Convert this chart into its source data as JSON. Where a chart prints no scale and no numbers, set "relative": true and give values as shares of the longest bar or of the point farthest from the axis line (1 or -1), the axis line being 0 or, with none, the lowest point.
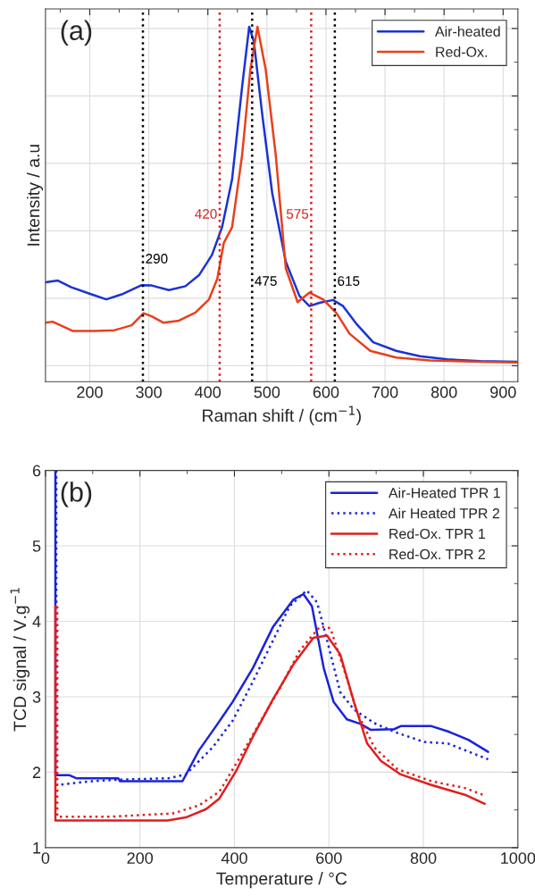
{
  "chart_data": [
    {
      "type": "line",
      "relative": true,
      "xlabel": "Raman shift / (cm$^{−1}$)",
      "ylabel": "Intensity / a.u",
      "xlim": [
        125,
        925
      ],
      "xticks": [
        200,
        300,
        400,
        500,
        600,
        700,
        800,
        900
      ],
      "tick_labels": "x",
      "grid": true,
      "legend": "top right",
      "line_style": "solid",
      "marker": "none",
      "annotations": [
        "(a)"
      ],
      "ref_lines": [
        {
          "axis": "x",
          "value": 290,
          "label": "290",
          "color": "#000000",
          "line_style": "dotted"
        },
        {
          "axis": "x",
          "value": 420,
          "label": "420",
          "color": "#d42020",
          "line_style": "dotted"
        },
        {
          "axis": "x",
          "value": 475,
          "label": "475",
          "color": "#000000",
          "line_style": "dotted"
        },
        {
          "axis": "x",
          "value": 575,
          "label": "575",
          "color": "#d42020",
          "line_style": "dotted"
        },
        {
          "axis": "x",
          "value": 615,
          "label": "615",
          "color": "#000000",
          "line_style": "dotted"
        }
      ],
      "series": [
        {
          "name": "Air-heated",
          "color": "#1a33d4",
          "x": [
            125,
            146,
            169,
            203,
            228,
            254,
            288,
            305,
            334,
            362,
            385,
            407,
            424,
            441,
            458,
            470,
            478,
            492,
            509,
            532,
            555,
            572,
            589,
            612,
            629,
            651,
            680,
            719,
            759,
            805,
            862,
            923
          ],
          "values": [
            0.28,
            0.285,
            0.266,
            0.246,
            0.232,
            0.246,
            0.272,
            0.271,
            0.258,
            0.269,
            0.3,
            0.357,
            0.435,
            0.57,
            0.831,
            1.0,
            0.957,
            0.754,
            0.531,
            0.338,
            0.242,
            0.213,
            0.222,
            0.23,
            0.213,
            0.164,
            0.111,
            0.087,
            0.072,
            0.063,
            0.058,
            0.056
          ]
        },
        {
          "name": "Red-Ox.",
          "color": "#e8401c",
          "x": [
            125,
            137,
            171,
            208,
            242,
            271,
            291,
            305,
            325,
            351,
            379,
            402,
            416,
            427,
            441,
            458,
            472,
            484,
            498,
            515,
            532,
            552,
            572,
            595,
            618,
            640,
            675,
            719,
            776,
            862,
            923
          ],
          "values": [
            0.166,
            0.169,
            0.143,
            0.143,
            0.145,
            0.159,
            0.193,
            0.184,
            0.166,
            0.172,
            0.195,
            0.232,
            0.29,
            0.391,
            0.435,
            0.638,
            0.879,
            1.0,
            0.879,
            0.638,
            0.319,
            0.224,
            0.251,
            0.232,
            0.193,
            0.135,
            0.087,
            0.068,
            0.06,
            0.056,
            0.054
          ]
        }
      ]
    },
    {
      "type": "line",
      "xlabel": "Temperature / °C",
      "ylabel": "TCD signal / V.g$^{−1}$",
      "xlim": [
        0,
        1000
      ],
      "xticks": [
        0,
        200,
        400,
        600,
        800,
        1000
      ],
      "ylim": [
        1,
        6
      ],
      "yticks": [
        1,
        2,
        3,
        4,
        5,
        6
      ],
      "grid": true,
      "legend": "top right",
      "marker": "none",
      "annotations": [
        "(b)"
      ],
      "series": [
        {
          "name": "Air-Heated TPR 1",
          "color": "#1a24d8",
          "line_style": "solid",
          "x": [
            21,
            21,
            51,
            65,
            154,
            158,
            290,
            325,
            361,
            396,
            439,
            482,
            525,
            546,
            564,
            589,
            610,
            638,
            667,
            689,
            738,
            752,
            817,
            852,
            895,
            937
          ],
          "values": [
            6.0,
            1.96,
            1.96,
            1.92,
            1.92,
            1.88,
            1.88,
            2.29,
            2.61,
            2.93,
            3.38,
            3.93,
            4.29,
            4.36,
            4.2,
            3.38,
            2.93,
            2.7,
            2.64,
            2.56,
            2.57,
            2.61,
            2.61,
            2.54,
            2.43,
            2.27
          ]
        },
        {
          "name": "Air Heated TPR 2",
          "color": "#1a24d8",
          "line_style": "dotted",
          "x": [
            23,
            23,
            98,
            154,
            261,
            297,
            354,
            396,
            439,
            482,
            517,
            553,
            575,
            596,
            624,
            653,
            696,
            745,
            802,
            852,
            937
          ],
          "values": [
            6.0,
            1.83,
            1.88,
            1.9,
            1.92,
            1.97,
            2.33,
            2.68,
            3.2,
            3.75,
            4.2,
            4.41,
            4.25,
            3.75,
            3.06,
            2.83,
            2.65,
            2.52,
            2.4,
            2.38,
            2.17
          ]
        },
        {
          "name": "Red-Ox. TPR 1",
          "color": "#e01e1e",
          "line_style": "solid",
          "x": [
            21,
            21,
            258,
            297,
            340,
            368,
            404,
            439,
            482,
            525,
            567,
            596,
            624,
            653,
            681,
            710,
            752,
            817,
            888,
            930
          ],
          "values": [
            4.2,
            1.36,
            1.36,
            1.4,
            1.51,
            1.65,
            2.02,
            2.47,
            2.97,
            3.43,
            3.78,
            3.81,
            3.56,
            2.93,
            2.38,
            2.15,
            1.97,
            1.83,
            1.7,
            1.58
          ]
        },
        {
          "name": "Red-Ox. TPR 2",
          "color": "#e01e1e",
          "line_style": "dotted",
          "x": [
            25,
            25,
            140,
            226,
            268,
            325,
            368,
            411,
            453,
            496,
            538,
            581,
            603,
            631,
            660,
            696,
            745,
            817,
            888,
            930
          ],
          "values": [
            4.2,
            1.41,
            1.41,
            1.44,
            1.45,
            1.56,
            1.74,
            2.19,
            2.65,
            3.11,
            3.61,
            3.93,
            3.91,
            3.38,
            2.79,
            2.33,
            2.04,
            1.88,
            1.79,
            1.69
          ]
        }
      ]
    }
  ]
}
